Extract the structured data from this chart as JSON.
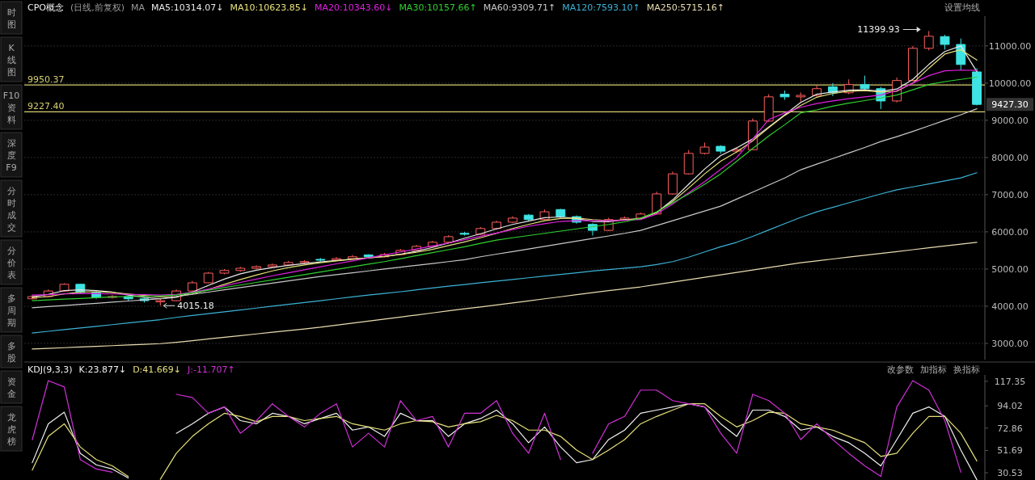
{
  "chart_data": [
    {
      "type": "candlestick",
      "title": "CPO概念",
      "subtitle": "(日线,前复权)",
      "legend_title": "MA",
      "legend": "top left",
      "grid": "y",
      "tick_labels": "y",
      "categories": [
        null,
        null,
        null,
        null,
        null,
        null,
        null,
        null,
        null,
        null,
        null,
        null,
        null,
        null,
        null,
        null,
        null,
        null,
        null,
        null,
        null,
        null,
        null,
        null,
        null,
        null,
        null,
        null,
        null,
        null,
        null,
        null,
        null,
        null,
        null,
        null,
        null,
        null,
        null,
        null,
        null,
        null,
        null,
        null,
        null,
        null,
        null,
        null,
        null,
        null,
        null,
        null,
        null,
        null,
        null,
        null,
        null,
        null,
        null,
        null
      ],
      "ohlc": [
        [
          4200,
          4300,
          4180,
          4260
        ],
        [
          4260,
          4450,
          4240,
          4410
        ],
        [
          4410,
          4620,
          4390,
          4590
        ],
        [
          4590,
          4600,
          4340,
          4370
        ],
        [
          4370,
          4400,
          4200,
          4240
        ],
        [
          4240,
          4300,
          4210,
          4260
        ],
        [
          4260,
          4280,
          4150,
          4200
        ],
        [
          4200,
          4230,
          4100,
          4150
        ],
        [
          4120,
          4200,
          4015.18,
          4150
        ],
        [
          4150,
          4450,
          4140,
          4410
        ],
        [
          4410,
          4680,
          4400,
          4630
        ],
        [
          4630,
          4920,
          4620,
          4890
        ],
        [
          4890,
          5000,
          4860,
          4960
        ],
        [
          4960,
          5060,
          4930,
          5020
        ],
        [
          5020,
          5100,
          4990,
          5065
        ],
        [
          5065,
          5150,
          5040,
          5110
        ],
        [
          5110,
          5220,
          5090,
          5175
        ],
        [
          5175,
          5240,
          5140,
          5200
        ],
        [
          5260,
          5300,
          5200,
          5240
        ],
        [
          5240,
          5320,
          5220,
          5280
        ],
        [
          5280,
          5380,
          5260,
          5330
        ],
        [
          5380,
          5400,
          5290,
          5330
        ],
        [
          5330,
          5430,
          5310,
          5390
        ],
        [
          5390,
          5540,
          5380,
          5500
        ],
        [
          5500,
          5650,
          5480,
          5610
        ],
        [
          5610,
          5760,
          5590,
          5720
        ],
        [
          5720,
          5910,
          5700,
          5870
        ],
        [
          5960,
          6000,
          5900,
          5935
        ],
        [
          5935,
          6130,
          5920,
          6090
        ],
        [
          6090,
          6300,
          6070,
          6260
        ],
        [
          6260,
          6420,
          6240,
          6370
        ],
        [
          6450,
          6480,
          6300,
          6330
        ],
        [
          6330,
          6600,
          6310,
          6540
        ],
        [
          6600,
          6620,
          6380,
          6410
        ],
        [
          6410,
          6440,
          6220,
          6260
        ],
        [
          6200,
          6230,
          5900,
          6040
        ],
        [
          6040,
          6380,
          6020,
          6330
        ],
        [
          6330,
          6410,
          6300,
          6370
        ],
        [
          6370,
          6520,
          6350,
          6480
        ],
        [
          6480,
          7080,
          6470,
          7020
        ],
        [
          7020,
          7620,
          7000,
          7560
        ],
        [
          7560,
          8200,
          7540,
          8110
        ],
        [
          8110,
          8400,
          8080,
          8280
        ],
        [
          8300,
          8330,
          8100,
          8170
        ],
        [
          8170,
          8260,
          8120,
          8210
        ],
        [
          8210,
          9050,
          8200,
          8980
        ],
        [
          8980,
          9700,
          8960,
          9630
        ],
        [
          9700,
          9800,
          9550,
          9630
        ],
        [
          9630,
          9750,
          9500,
          9670
        ],
        [
          9670,
          9950,
          9640,
          9850
        ],
        [
          9900,
          10000,
          9650,
          9740
        ],
        [
          9740,
          10100,
          9700,
          9960
        ],
        [
          9960,
          10200,
          9800,
          9850
        ],
        [
          9850,
          9900,
          9300,
          9520
        ],
        [
          9520,
          10150,
          9480,
          10070
        ],
        [
          10070,
          11000,
          10050,
          10935
        ],
        [
          10935,
          11399.93,
          10880,
          11260
        ],
        [
          11250,
          11300,
          10900,
          11040
        ],
        [
          11040,
          11200,
          10350,
          10500
        ],
        [
          10300,
          10400,
          9400,
          9427.3
        ]
      ],
      "series": [
        {
          "name": "MA5:10314.07↓",
          "type": "line",
          "color": "#e8e8e8",
          "values": [
            4250,
            4320,
            4420,
            4440,
            4420,
            4380,
            4300,
            4240,
            4200,
            4240,
            4380,
            4560,
            4730,
            4870,
            4970,
            5040,
            5100,
            5150,
            5190,
            5230,
            5270,
            5300,
            5340,
            5400,
            5480,
            5580,
            5700,
            5830,
            5950,
            6080,
            6200,
            6290,
            6380,
            6400,
            6360,
            6280,
            6270,
            6330,
            6350,
            6520,
            6860,
            7280,
            7690,
            8050,
            8260,
            8500,
            8820,
            9150,
            9480,
            9700,
            9760,
            9810,
            9820,
            9780,
            9840,
            10100,
            10500,
            10850,
            11000,
            10310
          ]
        },
        {
          "name": "MA10:10623.85↓",
          "type": "line",
          "color": "#e6e07a",
          "values": [
            4230,
            4260,
            4330,
            4380,
            4390,
            4370,
            4330,
            4290,
            4250,
            4260,
            4330,
            4450,
            4590,
            4720,
            4840,
            4950,
            5040,
            5110,
            5170,
            5220,
            5260,
            5300,
            5340,
            5390,
            5450,
            5530,
            5630,
            5730,
            5840,
            5960,
            6090,
            6200,
            6300,
            6360,
            6370,
            6330,
            6300,
            6320,
            6360,
            6520,
            6820,
            7180,
            7560,
            7900,
            8150,
            8450,
            8800,
            9130,
            9400,
            9620,
            9720,
            9780,
            9800,
            9760,
            9780,
            10000,
            10400,
            10780,
            10900,
            10620
          ]
        },
        {
          "name": "MA20:10343.60↓",
          "type": "line",
          "color": "#e020e0",
          "values": [
            4300,
            4310,
            4330,
            4340,
            4340,
            4330,
            4320,
            4310,
            4300,
            4320,
            4380,
            4460,
            4550,
            4640,
            4730,
            4820,
            4900,
            4980,
            5060,
            5140,
            5220,
            5300,
            5380,
            5460,
            5540,
            5620,
            5700,
            5790,
            5880,
            5970,
            6060,
            6150,
            6220,
            6280,
            6300,
            6300,
            6300,
            6310,
            6330,
            6480,
            6750,
            7050,
            7350,
            7680,
            8000,
            8500,
            9020,
            9200,
            9350,
            9450,
            9520,
            9580,
            9630,
            9680,
            9800,
            10000,
            10200,
            10330,
            10350,
            10340
          ]
        },
        {
          "name": "MA30:10157.66↑",
          "type": "line",
          "color": "#30d030",
          "values": [
            4150,
            4170,
            4190,
            4210,
            4230,
            4250,
            4260,
            4270,
            4280,
            4300,
            4360,
            4430,
            4500,
            4570,
            4640,
            4710,
            4780,
            4850,
            4920,
            4990,
            5060,
            5130,
            5200,
            5280,
            5360,
            5440,
            5520,
            5600,
            5690,
            5780,
            5840,
            5900,
            5960,
            6020,
            6080,
            6140,
            6200,
            6270,
            6370,
            6540,
            6780,
            7020,
            7280,
            7560,
            7900,
            8240,
            8580,
            8880,
            9200,
            9280,
            9380,
            9460,
            9530,
            9600,
            9680,
            9820,
            9960,
            10040,
            10100,
            10160
          ]
        },
        {
          "name": "MA60:9309.71↑",
          "type": "line",
          "color": "#c8c8c8",
          "values": [
            3960,
            3990,
            4020,
            4050,
            4080,
            4110,
            4140,
            4170,
            4200,
            4260,
            4320,
            4380,
            4440,
            4500,
            4560,
            4620,
            4680,
            4740,
            4800,
            4850,
            4900,
            4950,
            5000,
            5050,
            5100,
            5150,
            5200,
            5250,
            5330,
            5400,
            5470,
            5540,
            5610,
            5680,
            5750,
            5820,
            5890,
            5960,
            6040,
            6170,
            6300,
            6430,
            6560,
            6690,
            6880,
            7070,
            7260,
            7450,
            7670,
            7820,
            7970,
            8120,
            8270,
            8430,
            8560,
            8700,
            8850,
            9000,
            9150,
            9310
          ]
        },
        {
          "name": "MA120:7593.10↑",
          "type": "line",
          "color": "#3bb3d6",
          "values": [
            3280,
            3325,
            3370,
            3415,
            3460,
            3505,
            3550,
            3595,
            3640,
            3700,
            3750,
            3800,
            3850,
            3900,
            3950,
            4000,
            4050,
            4100,
            4150,
            4200,
            4250,
            4300,
            4345,
            4390,
            4440,
            4490,
            4540,
            4585,
            4630,
            4675,
            4720,
            4765,
            4810,
            4855,
            4900,
            4945,
            4985,
            5025,
            5060,
            5120,
            5200,
            5320,
            5460,
            5600,
            5720,
            5880,
            6050,
            6220,
            6390,
            6540,
            6660,
            6780,
            6900,
            7020,
            7130,
            7210,
            7290,
            7370,
            7450,
            7590
          ]
        },
        {
          "name": "MA250:5715.16↑",
          "type": "line",
          "color": "#e8dcb0",
          "values": [
            2850,
            2868,
            2886,
            2904,
            2922,
            2940,
            2958,
            2976,
            2994,
            3030,
            3075,
            3120,
            3165,
            3210,
            3255,
            3300,
            3345,
            3390,
            3435,
            3490,
            3545,
            3600,
            3655,
            3710,
            3765,
            3820,
            3875,
            3930,
            3980,
            4035,
            4090,
            4145,
            4200,
            4255,
            4310,
            4365,
            4420,
            4470,
            4520,
            4585,
            4650,
            4715,
            4780,
            4845,
            4910,
            4975,
            5040,
            5105,
            5170,
            5220,
            5270,
            5320,
            5370,
            5420,
            5470,
            5520,
            5570,
            5620,
            5670,
            5720
          ]
        }
      ],
      "ylim": [
        2565,
        11800
      ],
      "yticks": [
        {
          "value": 3000,
          "label": "3000.00"
        },
        {
          "value": 4000,
          "label": "4000.00"
        },
        {
          "value": 5000,
          "label": "5000.00"
        },
        {
          "value": 6000,
          "label": "6000.00"
        },
        {
          "value": 7000,
          "label": "7000.00"
        },
        {
          "value": 8000,
          "label": "8000.00"
        },
        {
          "value": 9000,
          "label": "9000.00"
        },
        {
          "value": 10000,
          "label": "10000.00"
        },
        {
          "value": 11000,
          "label": "11000.00"
        }
      ],
      "ref_lines": [
        {
          "axis": "y",
          "value": 9950.37,
          "label": "9950.37",
          "color": "#d8d070"
        },
        {
          "axis": "y",
          "value": 9227.4,
          "label": "9227.40",
          "color": "#d8d070"
        }
      ],
      "annotations": [
        "设置均线",
        "时图",
        "K线图",
        "F10资料",
        "深度F9",
        "分时成交",
        "分价表",
        "多周期",
        "多股",
        "资金",
        "龙虎榜",
        "11399.93",
        "4015.18",
        "9427.30"
      ]
    },
    {
      "type": "line",
      "title": "KDJ(9,3,3)",
      "legend": "top left",
      "tick_labels": "y",
      "categories": [
        null,
        null,
        null,
        null,
        null,
        null,
        null,
        null,
        null,
        null,
        null,
        null,
        null,
        null,
        null,
        null,
        null,
        null,
        null,
        null,
        null,
        null,
        null,
        null,
        null,
        null,
        null,
        null,
        null,
        null,
        null,
        null,
        null,
        null,
        null,
        null,
        null,
        null,
        null,
        null,
        null,
        null,
        null,
        null,
        null,
        null,
        null,
        null,
        null,
        null,
        null,
        null,
        null,
        null,
        null,
        null,
        null,
        null,
        null,
        null
      ],
      "series": [
        {
          "name": "K:23.877↓",
          "color": "#f0f0f0",
          "values": [
            40,
            77,
            88,
            49,
            38,
            34,
            25.5,
            null,
            null,
            68,
            77,
            87,
            93,
            80,
            77,
            87,
            84,
            77,
            82,
            87,
            71,
            74,
            65,
            87,
            80,
            80,
            65,
            77,
            82,
            90,
            77,
            59,
            74,
            55,
            40,
            43,
            62,
            71,
            87,
            90,
            93,
            96,
            93,
            77,
            65,
            90,
            90,
            84,
            71,
            74,
            65,
            59,
            49,
            37,
            62,
            87,
            93,
            84,
            52,
            23.9
          ]
        },
        {
          "name": "D:41.669↓",
          "color": "#e6e07a",
          "values": [
            33,
            65,
            77,
            55,
            43,
            37,
            26.8,
            null,
            24.3,
            49,
            65,
            77,
            87,
            84,
            79,
            84,
            84,
            80,
            82,
            84,
            77,
            74,
            71,
            77,
            80,
            79,
            74,
            77,
            79,
            85,
            80,
            71,
            71,
            65,
            52,
            43,
            52,
            62,
            77,
            84,
            90,
            96,
            96,
            84,
            74,
            80,
            88,
            87,
            77,
            74,
            71,
            65,
            59,
            46,
            49,
            68,
            84,
            84,
            68,
            41.7
          ]
        },
        {
          "name": "J:-11.707↑",
          "color": "#d030d8",
          "values": [
            61.8,
            118,
            112,
            43,
            34,
            31,
            null,
            null,
            null,
            105,
            102,
            87,
            93,
            68,
            80,
            96,
            84,
            74,
            87,
            96,
            55,
            68,
            55,
            99,
            80,
            84,
            55,
            87,
            87,
            99,
            68,
            49,
            87,
            43,
            null,
            49,
            77,
            84,
            109,
            109,
            99,
            96,
            93,
            68,
            49,
            105,
            99,
            87,
            62,
            77,
            62,
            49,
            37,
            27,
            93,
            118,
            109,
            80,
            31,
            null
          ]
        }
      ],
      "ylim": [
        23.6,
        123.4
      ],
      "yticks": [
        117.35,
        94.02,
        72.86,
        51.69,
        30.53
      ],
      "annotations": [
        "改参数",
        "加指标",
        "换指标"
      ]
    }
  ]
}
